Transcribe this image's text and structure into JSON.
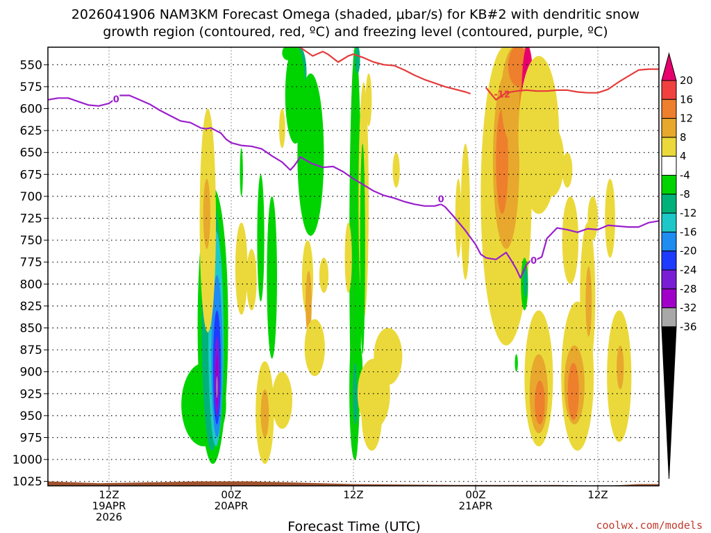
{
  "chart_data": {
    "type": "heatmap",
    "title_line1": "2026041906 NAM3KM Forecast Omega (shaded, μbar/s) for KB#2 with dendritic snow",
    "title_line2": "growth region (contoured, red, ºC) and freezing level (contoured, purple, ºC)",
    "xlabel": "Forecast Time (UTC)",
    "credit": "coolwx.com/models",
    "x_range_hours": [
      0,
      60
    ],
    "y_range_mb": [
      530,
      1030
    ],
    "y_ticks": [
      "550",
      "575",
      "600",
      "625",
      "650",
      "675",
      "700",
      "725",
      "750",
      "775",
      "800",
      "825",
      "850",
      "875",
      "900",
      "925",
      "950",
      "975",
      "1000",
      "1025"
    ],
    "x_ticks": [
      {
        "hour": 6,
        "line1": "12Z",
        "line2": "19APR",
        "line3": "2026"
      },
      {
        "hour": 18,
        "line1": "00Z",
        "line2": "20APR",
        "line3": ""
      },
      {
        "hour": 30,
        "line1": "12Z",
        "line2": "",
        "line3": ""
      },
      {
        "hour": 42,
        "line1": "00Z",
        "line2": "21APR",
        "line3": ""
      },
      {
        "hour": 54,
        "line1": "12Z",
        "line2": "",
        "line3": ""
      }
    ],
    "colorbar": {
      "labels": [
        "20",
        "16",
        "12",
        "8",
        "4",
        "-4",
        "-8",
        "-12",
        "-16",
        "-20",
        "-24",
        "-28",
        "-32",
        "-36"
      ],
      "colors": [
        "#e8006e",
        "#f04040",
        "#ee7f2d",
        "#e7a82d",
        "#ebd93b",
        "#ffffff",
        "#00d400",
        "#00b279",
        "#1fc8c8",
        "#1e8cf0",
        "#1e3cff",
        "#7a1ed6",
        "#a000c8",
        "#a8a8a8",
        "#000000"
      ],
      "top_color": "#e8006e",
      "bottom_color": "#000000"
    },
    "series": [
      {
        "name": "freezing level 0C",
        "color": "#9a1ecc",
        "label": "0",
        "points": [
          [
            0,
            590
          ],
          [
            1,
            588
          ],
          [
            2,
            588
          ],
          [
            3,
            592
          ],
          [
            4,
            596
          ],
          [
            5,
            597
          ],
          [
            6,
            594
          ],
          [
            6.5,
            590
          ],
          [
            7,
            585
          ],
          [
            8,
            585
          ],
          [
            9,
            590
          ],
          [
            10,
            595
          ],
          [
            11,
            602
          ],
          [
            12,
            608
          ],
          [
            13,
            614
          ],
          [
            14,
            616
          ],
          [
            15,
            622
          ],
          [
            15.5,
            623
          ],
          [
            16,
            622
          ],
          [
            17,
            628
          ],
          [
            17.5,
            635
          ],
          [
            18,
            639
          ],
          [
            19,
            642
          ],
          [
            20,
            643
          ],
          [
            21,
            646
          ],
          [
            22,
            654
          ],
          [
            23,
            661
          ],
          [
            23.8,
            670
          ],
          [
            24.2,
            665
          ],
          [
            24.8,
            655
          ],
          [
            25.5,
            660
          ],
          [
            26,
            663
          ],
          [
            27,
            667
          ],
          [
            28,
            666
          ],
          [
            29,
            672
          ],
          [
            30,
            680
          ],
          [
            31,
            687
          ],
          [
            32,
            694
          ],
          [
            33,
            699
          ],
          [
            34,
            702
          ],
          [
            35,
            706
          ],
          [
            36,
            709
          ],
          [
            37,
            711
          ],
          [
            38,
            711
          ],
          [
            38.6,
            709
          ],
          [
            39,
            712
          ],
          [
            40,
            725
          ],
          [
            41,
            739
          ],
          [
            42,
            755
          ],
          [
            42.5,
            766
          ],
          [
            43,
            770
          ],
          [
            44,
            772
          ],
          [
            45,
            764
          ],
          [
            45.5,
            773
          ],
          [
            46,
            783
          ],
          [
            46.4,
            793
          ],
          [
            47,
            778
          ],
          [
            47.5,
            772
          ],
          [
            48,
            772
          ],
          [
            48.5,
            769
          ],
          [
            49,
            748
          ],
          [
            50,
            736
          ],
          [
            51,
            738
          ],
          [
            52,
            741
          ],
          [
            53,
            737
          ],
          [
            54,
            738
          ],
          [
            55,
            733
          ],
          [
            56,
            734
          ],
          [
            57,
            735
          ],
          [
            58,
            735
          ],
          [
            59,
            730
          ],
          [
            60,
            728
          ]
        ]
      },
      {
        "name": "DGZ -12C upper",
        "color": "#e53b3b",
        "label": "",
        "points": [
          [
            24.5,
            528
          ],
          [
            26,
            540
          ],
          [
            27,
            535
          ],
          [
            27.5,
            538
          ],
          [
            28.5,
            547
          ],
          [
            29.5,
            540
          ],
          [
            30,
            538
          ],
          [
            31,
            542
          ],
          [
            32,
            547
          ],
          [
            33,
            550
          ],
          [
            34,
            551
          ],
          [
            35,
            556
          ],
          [
            36,
            562
          ],
          [
            37,
            567
          ],
          [
            38,
            571
          ],
          [
            39,
            575
          ],
          [
            40,
            578
          ],
          [
            41,
            581
          ],
          [
            41.5,
            583
          ]
        ]
      },
      {
        "name": "DGZ -12C lower",
        "color": "#e53b3b",
        "label": "-12",
        "points": [
          [
            43,
            576
          ],
          [
            44,
            590
          ],
          [
            45,
            582
          ],
          [
            46,
            580
          ],
          [
            47,
            579
          ],
          [
            48,
            580
          ],
          [
            49,
            580
          ],
          [
            50,
            579
          ],
          [
            51,
            579
          ],
          [
            52,
            581
          ],
          [
            53,
            582
          ],
          [
            54,
            582
          ],
          [
            55,
            578
          ],
          [
            56,
            570
          ],
          [
            57,
            563
          ],
          [
            58,
            556
          ],
          [
            59,
            555
          ],
          [
            60,
            555
          ]
        ]
      }
    ],
    "terrain_color": "#a0522d"
  }
}
